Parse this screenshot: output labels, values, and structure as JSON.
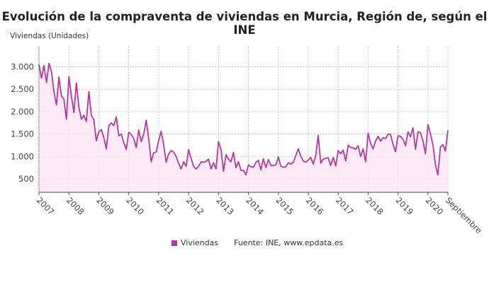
{
  "chart_data": {
    "type": "area",
    "title": "Evolución de la compraventa de viviendas en Murcia, Región de, según el INE",
    "ylabel": "Viviendas (Unidades)",
    "xlabel": "",
    "x_start": "2007-01",
    "x_end": "2020-09",
    "frequency": "monthly",
    "x_tick_labels": [
      "2007",
      "2008",
      "2009",
      "2010",
      "2011",
      "2012",
      "2013",
      "2014",
      "2015",
      "2016",
      "2017",
      "2018",
      "2019",
      "2020",
      "Septiembre"
    ],
    "y_ticks": [
      500,
      1000,
      1500,
      2000,
      2500,
      3000
    ],
    "y_tick_labels": [
      "500",
      "1.000",
      "1.500",
      "2.000",
      "2.500",
      "3.000"
    ],
    "ylim": [
      200,
      3450
    ],
    "grid": true,
    "legend_position": "bottom",
    "series": [
      {
        "name": "Viviendas",
        "color": "#b8369f",
        "fill": "#fbe6f5",
        "values": [
          3050,
          2750,
          3030,
          2650,
          3080,
          2900,
          2450,
          2150,
          2770,
          2350,
          2280,
          1830,
          2780,
          2350,
          1980,
          2640,
          2100,
          1830,
          1920,
          1780,
          2450,
          1920,
          1820,
          1350,
          1550,
          1600,
          1420,
          1170,
          1680,
          1750,
          1690,
          1880,
          1460,
          1500,
          1310,
          1160,
          1540,
          1490,
          1400,
          1200,
          1590,
          1330,
          1500,
          1810,
          1400,
          880,
          1080,
          1100,
          1360,
          1560,
          1270,
          870,
          1060,
          1130,
          1100,
          1000,
          850,
          720,
          880,
          780,
          1150,
          960,
          780,
          720,
          780,
          880,
          870,
          890,
          940,
          720,
          860,
          720,
          1330,
          1160,
          670,
          1040,
          940,
          880,
          1090,
          750,
          880,
          690,
          690,
          590,
          810,
          770,
          760,
          870,
          910,
          700,
          950,
          750,
          930,
          800,
          800,
          810,
          990,
          780,
          760,
          770,
          860,
          830,
          870,
          1020,
          1170,
          1010,
          900,
          870,
          920,
          980,
          830,
          1020,
          1470,
          850,
          940,
          960,
          970,
          800,
          980,
          790,
          1130,
          1060,
          1140,
          900,
          1250,
          1200,
          1190,
          1160,
          1240,
          1000,
          1170,
          880,
          1520,
          1290,
          1170,
          1350,
          1450,
          1340,
          1420,
          1400,
          1500,
          1490,
          1270,
          1110,
          1460,
          1450,
          1380,
          1240,
          1550,
          1440,
          1640,
          1160,
          1550,
          1530,
          1350,
          1060,
          1710,
          1500,
          1260,
          820,
          590,
          1210,
          1260,
          1120,
          1580
        ]
      }
    ],
    "source": "Fuente: INE, www.epdata.es"
  }
}
